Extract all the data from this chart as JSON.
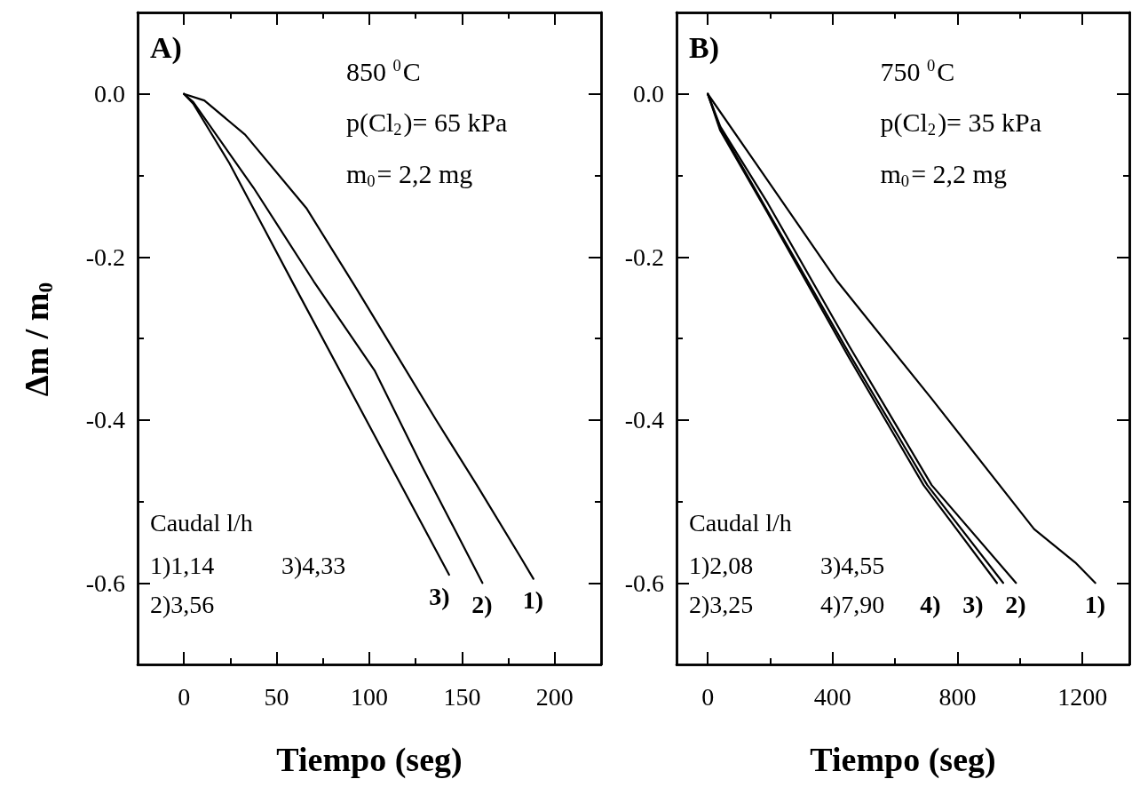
{
  "chart_data": [
    {
      "type": "line",
      "title": "A)",
      "xlabel": "Tiempo (seg)",
      "ylabel": "Δm / m$_{0}$",
      "annotations": [
        "850 $^{0}$C",
        "p(Cl$_{2}$)= 65 kPa",
        "m$_{0}$= 2,2 mg",
        "Caudal l/h",
        "1)1,14",
        "3)4,33",
        "2)3,56"
      ],
      "xlim": [
        -25,
        225
      ],
      "xticks": [
        0,
        {
          "value": 25,
          "label": null
        },
        50,
        {
          "value": 75,
          "label": null
        },
        100,
        {
          "value": 125,
          "label": null
        },
        150,
        {
          "value": 175,
          "label": null
        },
        200
      ],
      "ylim": [
        -0.7,
        0.1
      ],
      "yticks": [
        -0.6,
        {
          "value": -0.5,
          "label": null
        },
        -0.4,
        {
          "value": -0.3,
          "label": null
        },
        -0.2,
        {
          "value": -0.1,
          "label": null
        },
        {
          "value": 0,
          "label": "0.0"
        }
      ],
      "series": [
        {
          "name": "1)",
          "color": "#000000",
          "x": [
            0,
            11,
            33,
            66,
            92,
            112,
            136,
            158,
            182,
            188.5
          ],
          "values": [
            0,
            -0.008,
            -0.05,
            -0.14,
            -0.235,
            -0.31,
            -0.4,
            -0.48,
            -0.57,
            -0.595
          ]
        },
        {
          "name": "2)",
          "color": "#000000",
          "x": [
            0,
            5,
            37.5,
            70,
            103,
            128,
            161
          ],
          "values": [
            0,
            -0.01,
            -0.115,
            -0.23,
            -0.34,
            -0.455,
            -0.6
          ]
        },
        {
          "name": "3)",
          "color": "#000000",
          "x": [
            0,
            5,
            24.5,
            59.5,
            103,
            143
          ],
          "values": [
            0,
            -0.012,
            -0.085,
            -0.235,
            -0.42,
            -0.59
          ]
        }
      ]
    },
    {
      "type": "line",
      "title": "B)",
      "xlabel": "Tiempo (seg)",
      "annotations": [
        "750 $^{0}$C",
        "p(Cl$_{2}$)= 35 kPa",
        "m$_{0}$= 2,2 mg",
        "Caudal l/h",
        "1)2,08",
        "3)4,55",
        "2)3,25",
        "4)7,90"
      ],
      "xlim": [
        -100,
        1350
      ],
      "xticks": [
        0,
        {
          "value": 200,
          "label": null
        },
        400,
        {
          "value": 600,
          "label": null
        },
        800,
        {
          "value": 1000,
          "label": null
        },
        1200
      ],
      "ylim": [
        -0.7,
        0.1
      ],
      "yticks": [
        -0.6,
        {
          "value": -0.5,
          "label": null
        },
        -0.4,
        {
          "value": -0.3,
          "label": null
        },
        -0.2,
        {
          "value": -0.1,
          "label": null
        },
        {
          "value": 0,
          "label": "0.0"
        }
      ],
      "series": [
        {
          "name": "1)",
          "color": "#000000",
          "x": [
            0,
            152,
            415,
            717,
            1045,
            1177,
            1241
          ],
          "values": [
            0,
            -0.084,
            -0.23,
            -0.374,
            -0.534,
            -0.575,
            -0.6
          ]
        },
        {
          "name": "2)",
          "color": "#000000",
          "x": [
            0,
            40,
            192,
            454,
            717,
            987
          ],
          "values": [
            0,
            -0.04,
            -0.134,
            -0.31,
            -0.48,
            -0.6
          ]
        },
        {
          "name": "3)",
          "color": "#000000",
          "x": [
            0,
            40,
            192,
            455,
            703,
            946
          ],
          "values": [
            0,
            -0.042,
            -0.144,
            -0.32,
            -0.48,
            -0.6
          ]
        },
        {
          "name": "4)",
          "color": "#000000",
          "x": [
            0,
            40,
            190,
            450,
            691,
            926
          ],
          "values": [
            0,
            -0.045,
            -0.145,
            -0.322,
            -0.48,
            -0.6
          ]
        }
      ]
    }
  ]
}
